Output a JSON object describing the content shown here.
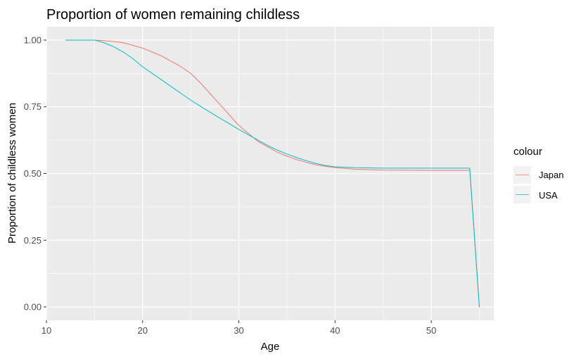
{
  "chart_data": {
    "type": "line",
    "title": "Proportion of women remaining childless",
    "xlabel": "Age",
    "ylabel": "Proportion of childless women",
    "xlim": [
      10,
      56.5
    ],
    "ylim": [
      -0.05,
      1.05
    ],
    "x_ticks": [
      10,
      20,
      30,
      40,
      50
    ],
    "x_tick_labels": [
      "10",
      "20",
      "30",
      "40",
      "50"
    ],
    "y_ticks": [
      0,
      0.25,
      0.5,
      0.75,
      1.0
    ],
    "y_tick_labels": [
      "0.00",
      "0.25",
      "0.50",
      "0.75",
      "1.00"
    ],
    "grid": true,
    "legend": {
      "title": "colour",
      "position": "right"
    },
    "series": [
      {
        "name": "Japan",
        "color": "#F8766D",
        "points": [
          [
            12,
            1.0
          ],
          [
            15,
            1.0
          ],
          [
            16,
            0.998
          ],
          [
            17,
            0.995
          ],
          [
            18,
            0.99
          ],
          [
            19,
            0.98
          ],
          [
            20,
            0.97
          ],
          [
            21,
            0.955
          ],
          [
            22,
            0.94
          ],
          [
            23,
            0.92
          ],
          [
            24,
            0.9
          ],
          [
            25,
            0.875
          ],
          [
            26,
            0.84
          ],
          [
            27,
            0.8
          ],
          [
            28,
            0.76
          ],
          [
            29,
            0.72
          ],
          [
            30,
            0.68
          ],
          [
            31,
            0.65
          ],
          [
            32,
            0.62
          ],
          [
            33,
            0.6
          ],
          [
            34,
            0.58
          ],
          [
            35,
            0.565
          ],
          [
            36,
            0.552
          ],
          [
            37,
            0.542
          ],
          [
            38,
            0.533
          ],
          [
            39,
            0.527
          ],
          [
            40,
            0.522
          ],
          [
            42,
            0.516
          ],
          [
            45,
            0.513
          ],
          [
            50,
            0.512
          ],
          [
            54,
            0.512
          ],
          [
            55,
            0.0
          ]
        ]
      },
      {
        "name": "USA",
        "color": "#00BFC4",
        "points": [
          [
            12,
            1.0
          ],
          [
            15,
            1.0
          ],
          [
            16,
            0.99
          ],
          [
            17,
            0.975
          ],
          [
            18,
            0.955
          ],
          [
            19,
            0.93
          ],
          [
            20,
            0.9
          ],
          [
            21,
            0.875
          ],
          [
            22,
            0.85
          ],
          [
            23,
            0.825
          ],
          [
            24,
            0.8
          ],
          [
            25,
            0.775
          ],
          [
            26,
            0.752
          ],
          [
            27,
            0.73
          ],
          [
            28,
            0.708
          ],
          [
            29,
            0.687
          ],
          [
            30,
            0.665
          ],
          [
            31,
            0.645
          ],
          [
            32,
            0.625
          ],
          [
            33,
            0.605
          ],
          [
            34,
            0.588
          ],
          [
            35,
            0.573
          ],
          [
            36,
            0.56
          ],
          [
            37,
            0.548
          ],
          [
            38,
            0.538
          ],
          [
            39,
            0.53
          ],
          [
            40,
            0.525
          ],
          [
            42,
            0.522
          ],
          [
            45,
            0.52
          ],
          [
            50,
            0.52
          ],
          [
            54,
            0.52
          ],
          [
            55,
            0.0
          ]
        ]
      }
    ]
  }
}
